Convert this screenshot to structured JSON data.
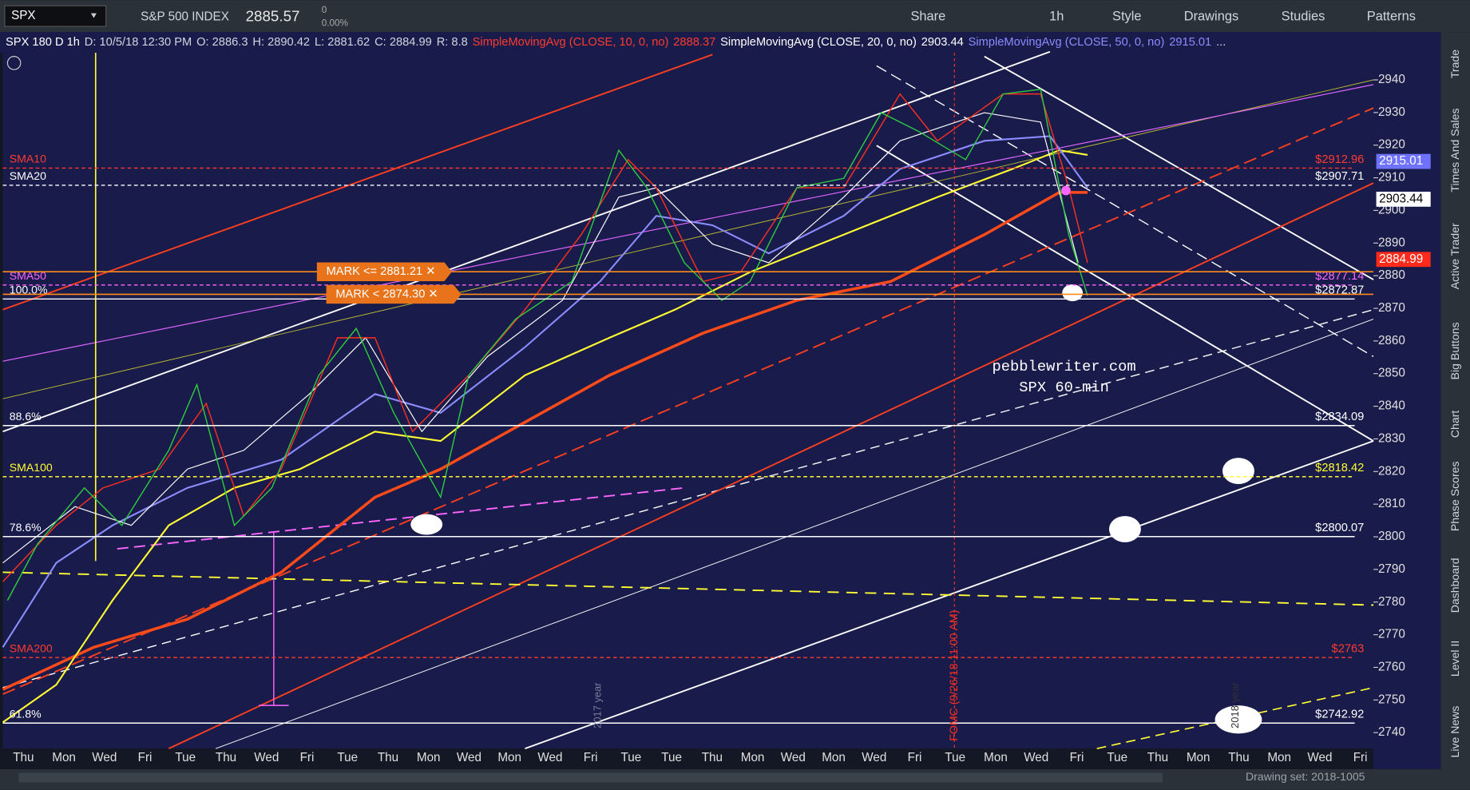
{
  "toolbar": {
    "symbol": "SPX",
    "name": "S&P 500 INDEX",
    "price": "2885.57",
    "change": "0",
    "change_pct": "0.00%",
    "buttons": [
      "Share",
      "1h",
      "Style",
      "Drawings",
      "Studies",
      "Patterns"
    ]
  },
  "legend": [
    {
      "text": "SPX 180 D 1h",
      "color": "#ffffff"
    },
    {
      "text": "D: 10/5/18 12:30 PM",
      "color": "#cfd6de"
    },
    {
      "text": "O: 2886.3",
      "color": "#cfd6de"
    },
    {
      "text": "H: 2890.42",
      "color": "#cfd6de"
    },
    {
      "text": "L: 2881.62",
      "color": "#cfd6de"
    },
    {
      "text": "C: 2884.99",
      "color": "#cfd6de"
    },
    {
      "text": "R: 8.8",
      "color": "#cfd6de"
    },
    {
      "text": "SimpleMovingAvg (CLOSE, 10, 0, no)",
      "color": "#ff3b30"
    },
    {
      "text": "2888.37",
      "color": "#ff3b30"
    },
    {
      "text": "SimpleMovingAvg (CLOSE, 20, 0, no)",
      "color": "#ffffff"
    },
    {
      "text": "2903.44",
      "color": "#ffffff"
    },
    {
      "text": "SimpleMovingAvg (CLOSE, 50, 0, no)",
      "color": "#8a8cff"
    },
    {
      "text": "2915.01",
      "color": "#8a8cff"
    },
    {
      "text": "...",
      "color": "#cfd6de"
    }
  ],
  "price_ticks": [
    2940,
    2930,
    2920,
    2910,
    2900,
    2890,
    2880,
    2870,
    2860,
    2850,
    2840,
    2830,
    2820,
    2810,
    2800,
    2790,
    2780,
    2770,
    2760,
    2750,
    2740
  ],
  "levels": [
    {
      "name": "SMA10",
      "value": 2912.96,
      "label": "$2912.96",
      "color": "#ff3b30",
      "dash": true
    },
    {
      "name": "SMA20",
      "value": 2907.71,
      "label": "$2907.71",
      "color": "#ffffff",
      "dash": true
    },
    {
      "name": "SMA50",
      "value": 2877.14,
      "label": "$2877.14",
      "color": "#ff66ff",
      "dash": true
    },
    {
      "name": "100.0%",
      "value": 2872.87,
      "label": "$2872.87",
      "color": "#ffffff",
      "dash": false
    },
    {
      "name": "88.6%",
      "value": 2834.09,
      "label": "$2834.09",
      "color": "#ffffff",
      "dash": false
    },
    {
      "name": "SMA100",
      "value": 2818.42,
      "label": "$2818.42",
      "color": "#ffff33",
      "dash": true
    },
    {
      "name": "78.6%",
      "value": 2800.07,
      "label": "$2800.07",
      "color": "#ffffff",
      "dash": false
    },
    {
      "name": "SMA200",
      "value": 2763,
      "label": "$2763",
      "color": "#ff3b30",
      "dash": true
    },
    {
      "name": "61.8%",
      "value": 2742.92,
      "label": "$2742.92",
      "color": "#ffffff",
      "dash": false
    }
  ],
  "axis_tags": [
    {
      "value": 2915.01,
      "label": "2915.01",
      "color": "#6f72ff"
    },
    {
      "value": 2903.44,
      "label": "2903.44",
      "color": "#ffffff"
    },
    {
      "value": 2884.99,
      "label": "2884.99",
      "color": "#ff2a1a"
    }
  ],
  "alerts": [
    {
      "value": 2881.21,
      "label": "MARK <= 2881.21 ✕"
    },
    {
      "value": 2874.3,
      "label": "MARK < 2874.30 ✕"
    }
  ],
  "watermark": [
    "pebblewriter.com",
    "SPX 60-min"
  ],
  "annotations": {
    "fomc": "FOMC (9/26/18 11:00 AM)",
    "y2017": "2017 year",
    "y2018": "2018 year"
  },
  "x_labels": [
    "Thu",
    "Mon",
    "Wed",
    "Fri",
    "Tue",
    "Thu",
    "Wed",
    "Fri",
    "Tue",
    "Thu",
    "Mon",
    "Wed",
    "Mon",
    "Wed",
    "Fri",
    "Tue",
    "Tue",
    "Thu",
    "Mon",
    "Wed",
    "Mon",
    "Wed",
    "Fri",
    "Tue",
    "Mon",
    "Wed",
    "Fri",
    "Tue",
    "Thu",
    "Mon",
    "Thu",
    "Mon",
    "Wed",
    "Fri"
  ],
  "sidebar": [
    "Trade",
    "Times And Sales",
    "Active Trader",
    "Big Buttons",
    "Chart",
    "Phase Scores",
    "Dashboard",
    "Level II",
    "Live News"
  ],
  "drawing_set": "Drawing set: 2018-1005"
}
